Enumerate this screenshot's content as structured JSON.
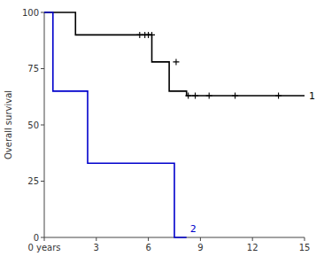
{
  "chart_data": {
    "type": "step",
    "ylabel": "Overall survival",
    "series": [
      {
        "name": "1",
        "color": "#000000",
        "x": [
          0,
          1.8,
          1.8,
          5.0,
          6.2,
          6.2,
          7.2,
          7.2,
          8.2,
          8.2,
          15
        ],
        "values": [
          100,
          100,
          90,
          90,
          90,
          78,
          78,
          65,
          65,
          63,
          63
        ],
        "censor_x": [
          5.5,
          5.8,
          6.0,
          6.2,
          7.6,
          8.3,
          8.7,
          9.5,
          11.0,
          13.5
        ],
        "censor_values": [
          90,
          90,
          90,
          90,
          78,
          63,
          63,
          63,
          63,
          63
        ]
      },
      {
        "name": "2",
        "color": "#0000cc",
        "x": [
          0,
          0.5,
          0.5,
          2.5,
          2.5,
          7.5,
          7.5,
          8.2
        ],
        "values": [
          100,
          100,
          65,
          65,
          33,
          33,
          0,
          0
        ]
      }
    ],
    "xlim": [
      0,
      15
    ],
    "ylim": [
      0,
      100
    ],
    "xticks": [
      {
        "value": 0,
        "label": "0 years"
      },
      3,
      6,
      9,
      12,
      15
    ],
    "yticks": [
      0,
      25,
      50,
      75,
      100
    ],
    "grid": false
  }
}
